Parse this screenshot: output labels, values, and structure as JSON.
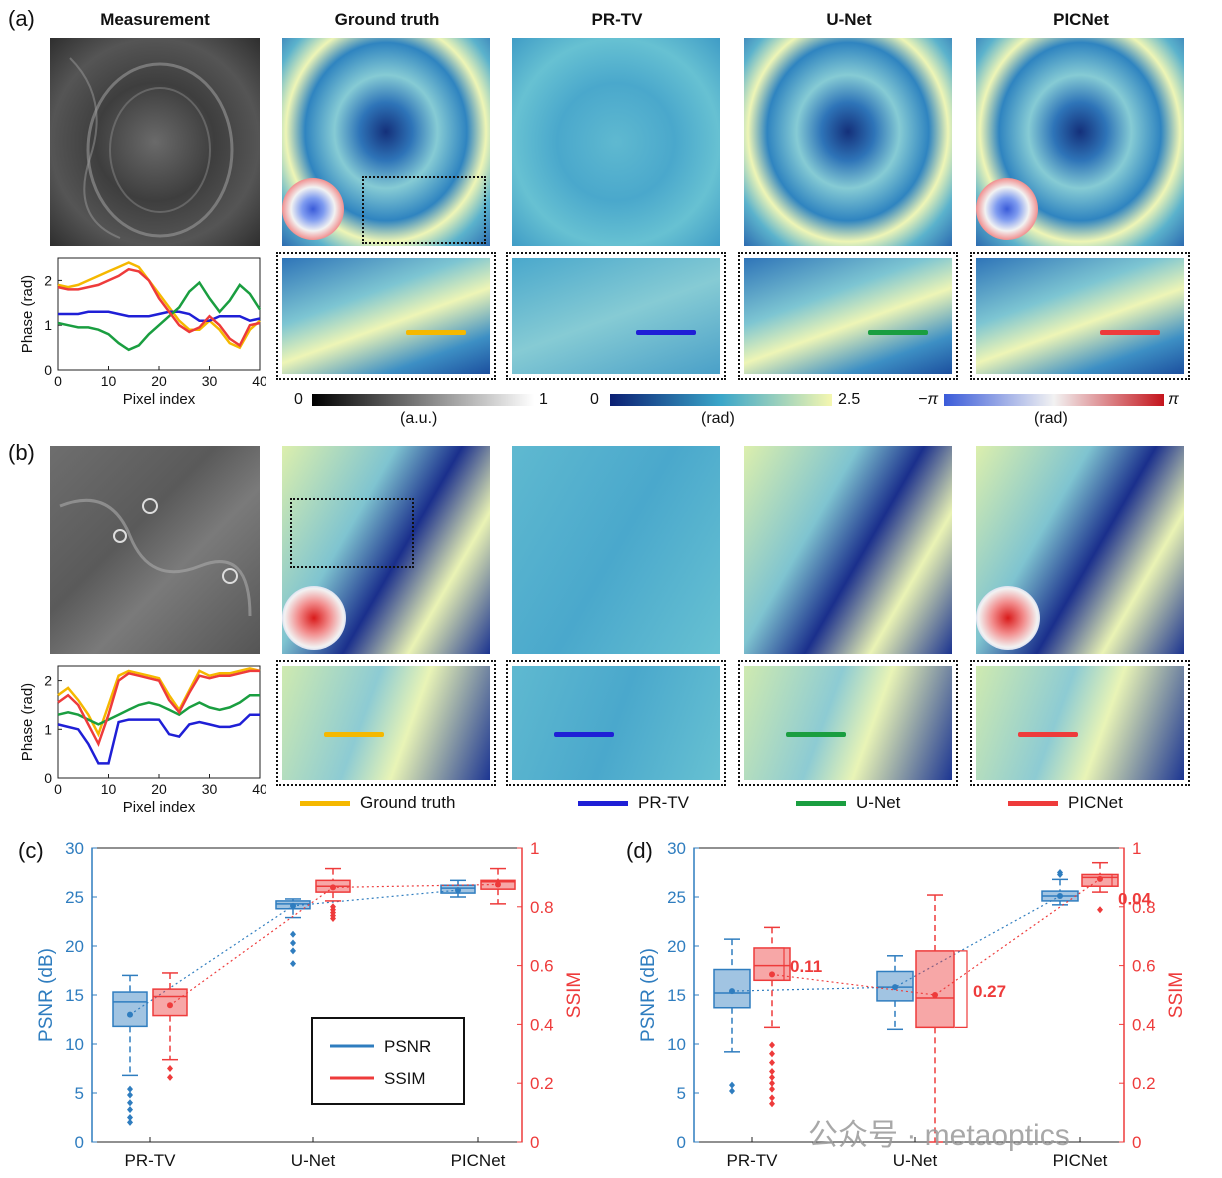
{
  "panels": {
    "a": {
      "label": "(a)"
    },
    "b": {
      "label": "(b)"
    },
    "c": {
      "label": "(c)"
    },
    "d": {
      "label": "(d)"
    }
  },
  "column_titles": [
    "Measurement",
    "Ground truth",
    "PR-TV",
    "U-Net",
    "PICNet"
  ],
  "colorbars": {
    "gray": {
      "min": "0",
      "max": "1",
      "unit": "(a.u.)",
      "start": "#000000",
      "end": "#ffffff"
    },
    "phase": {
      "min": "0",
      "max": "2.5",
      "unit": "(rad)",
      "start": "#0b1f73",
      "mid": "#3aa6c9",
      "end": "#f5f7b0"
    },
    "pupil": {
      "min": "−π",
      "max": "π",
      "unit": "(rad)",
      "start": "#3a5bd9",
      "mid": "#f2f2f2",
      "end": "#c4141c"
    }
  },
  "legend_lines": [
    {
      "label": "Ground truth",
      "color": "#f5b800"
    },
    {
      "label": "PR-TV",
      "color": "#1f1fd6"
    },
    {
      "label": "U-Net",
      "color": "#1a9e40"
    },
    {
      "label": "PICNet",
      "color": "#ee3b3b"
    }
  ],
  "chart_data": [
    {
      "type": "line",
      "id": "profile-a",
      "xlabel": "Pixel index",
      "ylabel": "Phase (rad)",
      "xlim": [
        0,
        40
      ],
      "ylim": [
        0,
        2.5
      ],
      "xticks": [
        "0",
        "10",
        "20",
        "30",
        "40"
      ],
      "yticks": [
        "0",
        "1",
        "2"
      ],
      "x": [
        0,
        2,
        4,
        6,
        8,
        10,
        12,
        14,
        16,
        18,
        20,
        22,
        24,
        26,
        28,
        30,
        32,
        34,
        36,
        38,
        40
      ],
      "series": [
        {
          "name": "Ground truth",
          "color": "#f5b800",
          "values": [
            1.9,
            1.85,
            1.9,
            2.0,
            2.1,
            2.2,
            2.3,
            2.4,
            2.3,
            2.0,
            1.7,
            1.4,
            1.1,
            0.9,
            0.9,
            1.1,
            0.9,
            0.6,
            0.5,
            0.9,
            1.1
          ]
        },
        {
          "name": "PR-TV",
          "color": "#1f1fd6",
          "values": [
            1.25,
            1.25,
            1.25,
            1.3,
            1.3,
            1.3,
            1.25,
            1.2,
            1.2,
            1.2,
            1.25,
            1.3,
            1.3,
            1.25,
            1.1,
            1.1,
            1.2,
            1.2,
            1.2,
            1.1,
            1.15
          ]
        },
        {
          "name": "U-Net",
          "color": "#1a9e40",
          "values": [
            1.05,
            1.0,
            0.95,
            0.95,
            0.9,
            0.8,
            0.6,
            0.45,
            0.55,
            0.8,
            1.0,
            1.2,
            1.4,
            1.75,
            1.95,
            1.6,
            1.3,
            1.55,
            1.9,
            1.7,
            1.35
          ]
        },
        {
          "name": "PICNet",
          "color": "#ee3b3b",
          "values": [
            1.85,
            1.8,
            1.8,
            1.85,
            1.9,
            2.0,
            2.1,
            2.25,
            2.2,
            2.0,
            1.6,
            1.3,
            1.0,
            0.85,
            0.95,
            1.2,
            1.0,
            0.7,
            0.55,
            1.0,
            1.05
          ]
        }
      ]
    },
    {
      "type": "line",
      "id": "profile-b",
      "xlabel": "Pixel index",
      "ylabel": "Phase (rad)",
      "xlim": [
        0,
        40
      ],
      "ylim": [
        0,
        2.3
      ],
      "xticks": [
        "0",
        "10",
        "20",
        "30",
        "40"
      ],
      "yticks": [
        "0",
        "1",
        "2"
      ],
      "x": [
        0,
        2,
        4,
        6,
        8,
        10,
        12,
        14,
        16,
        18,
        20,
        22,
        24,
        26,
        28,
        30,
        32,
        34,
        36,
        38,
        40
      ],
      "series": [
        {
          "name": "Ground truth",
          "color": "#f5b800",
          "values": [
            1.7,
            1.85,
            1.6,
            1.3,
            0.9,
            1.5,
            2.1,
            2.2,
            2.15,
            2.1,
            2.05,
            1.7,
            1.4,
            1.8,
            2.2,
            2.1,
            2.15,
            2.15,
            2.2,
            2.25,
            2.2
          ]
        },
        {
          "name": "PR-TV",
          "color": "#1f1fd6",
          "values": [
            1.1,
            1.05,
            1.0,
            0.7,
            0.3,
            0.3,
            1.15,
            1.2,
            1.2,
            1.2,
            1.2,
            0.9,
            0.85,
            1.1,
            1.15,
            1.1,
            1.05,
            1.05,
            1.1,
            1.3,
            1.3
          ]
        },
        {
          "name": "U-Net",
          "color": "#1a9e40",
          "values": [
            1.3,
            1.35,
            1.3,
            1.2,
            1.1,
            1.2,
            1.3,
            1.4,
            1.5,
            1.55,
            1.5,
            1.4,
            1.3,
            1.45,
            1.55,
            1.45,
            1.4,
            1.45,
            1.55,
            1.7,
            1.7
          ]
        },
        {
          "name": "PICNet",
          "color": "#ee3b3b",
          "values": [
            1.55,
            1.7,
            1.5,
            1.1,
            0.7,
            1.3,
            2.0,
            2.15,
            2.1,
            2.05,
            2.0,
            1.6,
            1.35,
            1.75,
            2.1,
            2.05,
            2.1,
            2.1,
            2.15,
            2.2,
            2.2
          ]
        }
      ]
    },
    {
      "type": "box",
      "id": "boxplot-c",
      "categories": [
        "PR-TV",
        "U-Net",
        "PICNet"
      ],
      "y_left": {
        "label": "PSNR (dB)",
        "range": [
          0,
          30
        ],
        "ticks": [
          "0",
          "5",
          "10",
          "15",
          "20",
          "25",
          "30"
        ],
        "color": "#2f7dbf"
      },
      "y_right": {
        "label": "SSIM",
        "range": [
          0,
          1
        ],
        "ticks": [
          "0",
          "0.2",
          "0.4",
          "0.6",
          "0.8",
          "1"
        ],
        "color": "#ee3b3b"
      },
      "legend": [
        {
          "label": "PSNR",
          "color": "#2f7dbf"
        },
        {
          "label": "SSIM",
          "color": "#ee3b3b"
        }
      ],
      "series": [
        {
          "name": "PSNR",
          "color": "#2f7dbf",
          "boxes": [
            {
              "q1": 11.8,
              "median": 14.3,
              "q3": 15.3,
              "whisker_low": 6.8,
              "whisker_high": 17.0,
              "mean": 13.0,
              "outliers": [
                2.0,
                2.5,
                3.3,
                4.0,
                4.8,
                5.4
              ]
            },
            {
              "q1": 23.8,
              "median": 24.3,
              "q3": 24.6,
              "whisker_low": 22.9,
              "whisker_high": 24.8,
              "mean": 24.1,
              "outliers": [
                18.2,
                19.5,
                20.3,
                21.2
              ]
            },
            {
              "q1": 25.4,
              "median": 25.9,
              "q3": 26.2,
              "whisker_low": 25.0,
              "whisker_high": 26.7,
              "mean": 25.7,
              "outliers": []
            }
          ]
        },
        {
          "name": "SSIM",
          "color": "#ee3b3b",
          "boxes": [
            {
              "q1": 0.43,
              "median": 0.495,
              "q3": 0.52,
              "whisker_low": 0.28,
              "whisker_high": 0.575,
              "mean": 0.465,
              "outliers": [
                0.22,
                0.25
              ]
            },
            {
              "q1": 0.85,
              "median": 0.87,
              "q3": 0.89,
              "whisker_low": 0.82,
              "whisker_high": 0.93,
              "mean": 0.866,
              "outliers": [
                0.76,
                0.77,
                0.78,
                0.79,
                0.8
              ]
            },
            {
              "q1": 0.86,
              "median": 0.885,
              "q3": 0.89,
              "whisker_low": 0.81,
              "whisker_high": 0.93,
              "mean": 0.876,
              "outliers": []
            }
          ]
        }
      ]
    },
    {
      "type": "box",
      "id": "boxplot-d",
      "categories": [
        "PR-TV",
        "U-Net",
        "PICNet"
      ],
      "y_left": {
        "label": "PSNR (dB)",
        "range": [
          0,
          30
        ],
        "ticks": [
          "0",
          "5",
          "10",
          "15",
          "20",
          "25",
          "30"
        ],
        "color": "#2f7dbf"
      },
      "y_right": {
        "label": "SSIM",
        "range": [
          0,
          1
        ],
        "ticks": [
          "0",
          "0.2",
          "0.4",
          "0.6",
          "0.8",
          "1"
        ],
        "color": "#ee3b3b"
      },
      "annotations": [
        "0.11",
        "0.27",
        "0.04"
      ],
      "series": [
        {
          "name": "PSNR",
          "color": "#2f7dbf",
          "boxes": [
            {
              "q1": 13.7,
              "median": 15.2,
              "q3": 17.6,
              "whisker_low": 9.2,
              "whisker_high": 20.7,
              "mean": 15.4,
              "outliers": [
                5.2,
                5.8
              ]
            },
            {
              "q1": 14.4,
              "median": 15.8,
              "q3": 17.4,
              "whisker_low": 11.5,
              "whisker_high": 19.0,
              "mean": 15.8,
              "outliers": []
            },
            {
              "q1": 24.6,
              "median": 25.1,
              "q3": 25.6,
              "whisker_low": 24.2,
              "whisker_high": 26.8,
              "mean": 25.1,
              "outliers": [
                27.3,
                27.5
              ]
            }
          ]
        },
        {
          "name": "SSIM",
          "color": "#ee3b3b",
          "boxes": [
            {
              "q1": 0.55,
              "median": 0.6,
              "q3": 0.66,
              "whisker_low": 0.39,
              "whisker_high": 0.73,
              "mean": 0.57,
              "outliers": [
                0.13,
                0.15,
                0.18,
                0.2,
                0.22,
                0.24,
                0.27,
                0.3,
                0.33
              ]
            },
            {
              "q1": 0.39,
              "median": 0.49,
              "q3": 0.65,
              "whisker_low": 0.0,
              "whisker_high": 0.84,
              "mean": 0.5,
              "outliers": []
            },
            {
              "q1": 0.87,
              "median": 0.9,
              "q3": 0.91,
              "whisker_low": 0.85,
              "whisker_high": 0.95,
              "mean": 0.895,
              "outliers": [
                0.79
              ]
            }
          ]
        }
      ]
    }
  ],
  "watermark": "公众号 · metaoptics"
}
